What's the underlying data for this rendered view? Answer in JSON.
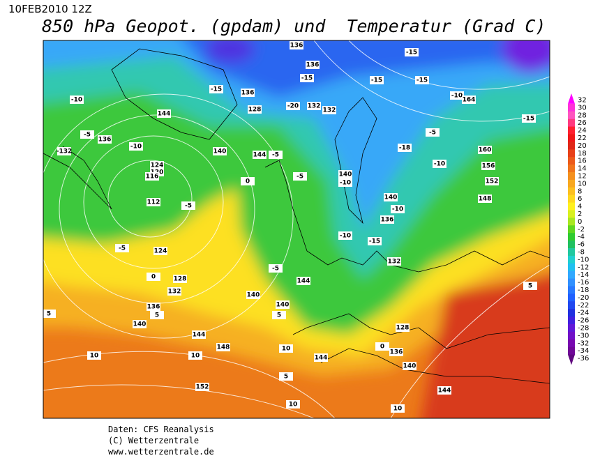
{
  "header": {
    "date": "10FEB2010 12Z",
    "title": "850 hPa Geopot. (gpdam) und  Temperatur (Grad C)"
  },
  "colorbar": {
    "values": [
      32,
      30,
      28,
      26,
      24,
      22,
      20,
      18,
      16,
      14,
      12,
      10,
      8,
      6,
      4,
      2,
      0,
      -2,
      -4,
      -6,
      -8,
      -10,
      -12,
      -14,
      -16,
      -18,
      -20,
      -22,
      -24,
      -26,
      -28,
      -30,
      -32,
      -34,
      -36
    ],
    "colors": [
      "#ff00ff",
      "#ff33d8",
      "#ff55c0",
      "#ff3a80",
      "#ff2030",
      "#f01818",
      "#e02818",
      "#e84018",
      "#ec5a1a",
      "#f0741c",
      "#f4901e",
      "#f8a820",
      "#fcc020",
      "#ffd820",
      "#fff020",
      "#d8f020",
      "#a8e820",
      "#60d820",
      "#30cc30",
      "#20c060",
      "#20c8a0",
      "#20d0d0",
      "#20c0f0",
      "#30a8ff",
      "#3090ff",
      "#2878ff",
      "#2060ff",
      "#2048f0",
      "#2030e0",
      "#4020e0",
      "#6018d8",
      "#7010c8",
      "#7808b0",
      "#700898",
      "#600880"
    ]
  },
  "map_labels": [
    "136",
    "136",
    "-15",
    "-15",
    "-15",
    "-15",
    "-20",
    "132",
    "132",
    "-10",
    "144",
    "-15",
    "136",
    "128",
    "-5",
    "136",
    "-10",
    "-132",
    "140",
    "144",
    "-5",
    "124",
    "120",
    "116",
    "112",
    "-5",
    "0",
    "-5",
    "140",
    "-10",
    "140",
    "-10",
    "136",
    "160",
    "156",
    "152",
    "148",
    "-10",
    "-18",
    "-5",
    "-15",
    "-10",
    "164",
    "124",
    "-5",
    "0",
    "128",
    "132",
    "136",
    "140",
    "144",
    "148",
    "152",
    "144",
    "140",
    "140",
    "-5",
    "144",
    "-15",
    "-10",
    "132",
    "128",
    "136",
    "140",
    "144",
    "10",
    "10",
    "10",
    "10",
    "10",
    "5",
    "5",
    "5",
    "5",
    "0",
    "5"
  ],
  "footer": [
    "Daten: CFS Reanalysis",
    "(C) Wetterzentrale",
    "www.wetterzentrale.de"
  ]
}
